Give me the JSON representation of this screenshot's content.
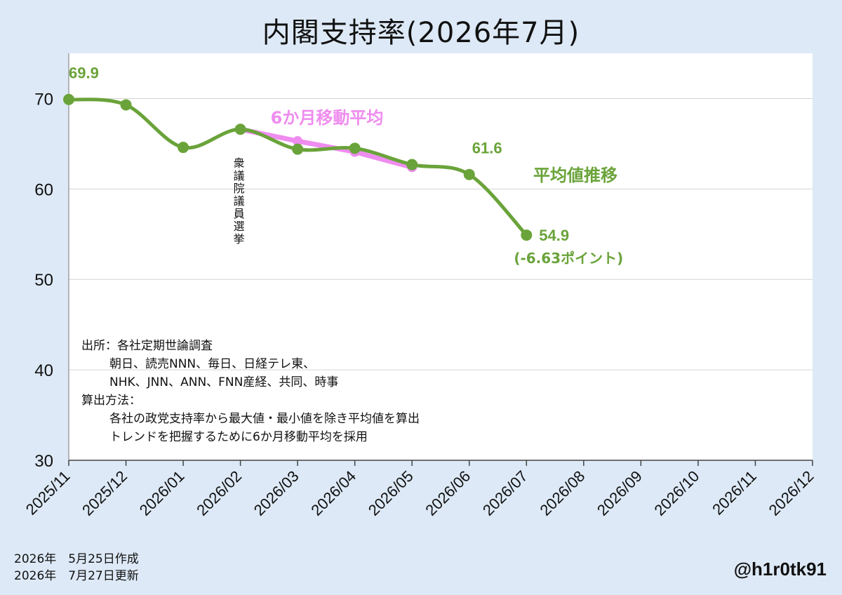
{
  "chart_data": {
    "type": "line",
    "title": "内閣支持率(2026年7月)",
    "categories": [
      "2025/11",
      "2025/12",
      "2026/01",
      "2026/02",
      "2026/03",
      "2026/04",
      "2026/05",
      "2026/06",
      "2026/07",
      "2026/08",
      "2026/09",
      "2026/10",
      "2026/11",
      "2026/12"
    ],
    "yticks": [
      30,
      40,
      50,
      60,
      70
    ],
    "ylim": [
      30,
      75
    ],
    "grid": true,
    "series": [
      {
        "name": "平均値推移",
        "color": "#6aa33a",
        "values": [
          69.9,
          69.3,
          64.6,
          66.6,
          64.4,
          64.5,
          62.7,
          61.6,
          54.9,
          null,
          null,
          null,
          null,
          null
        ]
      },
      {
        "name": "6か月移動平均",
        "color": "#ef8cef",
        "values": [
          null,
          null,
          null,
          66.6,
          65.3,
          64.1,
          62.4,
          null,
          null,
          null,
          null,
          null,
          null,
          null
        ]
      }
    ],
    "value_labels": [
      {
        "category": "2025/11",
        "text": "69.9"
      },
      {
        "category": "2026/06",
        "text": "61.6"
      },
      {
        "category": "2026/07",
        "text": "54.9"
      }
    ],
    "change_note": "(-6.63ポイント)",
    "election_marker": {
      "category": "2026/02",
      "text": "衆議院議員選挙"
    },
    "source_notes": [
      "出所：各社定期世論調査",
      "朝日、読売NNN、毎日、日経テレ東、",
      "NHK、JNN、ANN、FNN産経、共同、時事",
      "算出方法：",
      "各社の政党支持率から最大値・最小値を除き平均値を算出",
      "トレンドを把握するために6か月移動平均を採用"
    ]
  },
  "footer": {
    "created": "2026年　5月25日作成",
    "updated": "2026年　7月27日更新",
    "handle": "@h1r0tk91"
  }
}
